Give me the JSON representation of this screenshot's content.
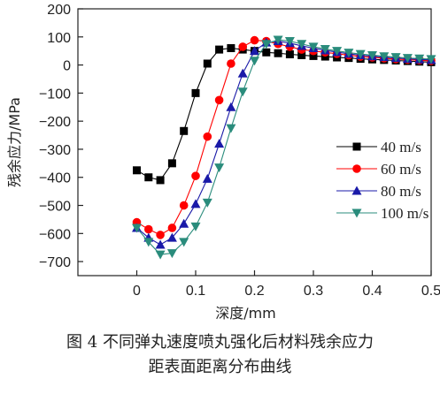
{
  "caption": {
    "line1": "图 4   不同弹丸速度喷丸强化后材料残余应力",
    "line2": "距表面距离分布曲线"
  },
  "chart_data": {
    "type": "line",
    "xlabel": "深度/mm",
    "ylabel": "残余应力/MPa",
    "xlim": [
      -0.1,
      0.5
    ],
    "ylim": [
      -750,
      200
    ],
    "xticks": [
      0,
      0.1,
      0.2,
      0.3,
      0.4,
      0.5
    ],
    "xtick_labels": [
      "0",
      "0.1",
      "0.2",
      "0.3",
      "0.4",
      "0.5"
    ],
    "yticks": [
      200,
      100,
      0,
      -100,
      -200,
      -300,
      -400,
      -500,
      -600,
      -700
    ],
    "ytick_labels": [
      "200",
      "100",
      "0",
      "−100",
      "−200",
      "−300",
      "−400",
      "−500",
      "−600",
      "−700"
    ],
    "legend_position": "right",
    "series": [
      {
        "name": "40 m/s",
        "color": "#000000",
        "marker": "square",
        "x": [
          0,
          0.02,
          0.04,
          0.06,
          0.08,
          0.1,
          0.12,
          0.14,
          0.16,
          0.18,
          0.2,
          0.22,
          0.24,
          0.26,
          0.28,
          0.3,
          0.32,
          0.34,
          0.36,
          0.38,
          0.4,
          0.42,
          0.44,
          0.46,
          0.48,
          0.5
        ],
        "values": [
          -375,
          -400,
          -410,
          -350,
          -235,
          -100,
          5,
          55,
          60,
          55,
          50,
          45,
          42,
          38,
          35,
          32,
          30,
          27,
          25,
          22,
          20,
          18,
          16,
          14,
          12,
          10
        ]
      },
      {
        "name": "60 m/s",
        "color": "#ff0000",
        "marker": "circle",
        "x": [
          0,
          0.02,
          0.04,
          0.06,
          0.08,
          0.1,
          0.12,
          0.14,
          0.16,
          0.18,
          0.2,
          0.22,
          0.24,
          0.26,
          0.28,
          0.3,
          0.32,
          0.34,
          0.36,
          0.38,
          0.4,
          0.42,
          0.44,
          0.46,
          0.48,
          0.5
        ],
        "values": [
          -560,
          -585,
          -605,
          -580,
          -500,
          -395,
          -255,
          -125,
          5,
          65,
          88,
          85,
          75,
          65,
          55,
          50,
          45,
          40,
          35,
          30,
          27,
          24,
          21,
          19,
          17,
          15
        ]
      },
      {
        "name": "80 m/s",
        "color": "#1a1aa8",
        "marker": "triangle-up",
        "x": [
          0,
          0.02,
          0.04,
          0.06,
          0.08,
          0.1,
          0.12,
          0.14,
          0.16,
          0.18,
          0.2,
          0.22,
          0.24,
          0.26,
          0.28,
          0.3,
          0.32,
          0.34,
          0.36,
          0.38,
          0.4,
          0.42,
          0.44,
          0.46,
          0.48,
          0.5
        ],
        "values": [
          -580,
          -615,
          -640,
          -615,
          -565,
          -495,
          -405,
          -280,
          -150,
          -30,
          50,
          80,
          85,
          78,
          68,
          60,
          52,
          46,
          40,
          35,
          31,
          28,
          25,
          22,
          20,
          18
        ]
      },
      {
        "name": "100 m/s",
        "color": "#2a8c7c",
        "marker": "triangle-down",
        "x": [
          0,
          0.02,
          0.04,
          0.06,
          0.08,
          0.1,
          0.12,
          0.14,
          0.16,
          0.18,
          0.2,
          0.22,
          0.24,
          0.26,
          0.28,
          0.3,
          0.32,
          0.34,
          0.36,
          0.38,
          0.4,
          0.42,
          0.44,
          0.46,
          0.48,
          0.5
        ],
        "values": [
          -580,
          -630,
          -675,
          -670,
          -630,
          -575,
          -490,
          -365,
          -225,
          -95,
          15,
          75,
          90,
          85,
          75,
          65,
          57,
          50,
          44,
          39,
          35,
          31,
          28,
          25,
          23,
          21
        ]
      }
    ]
  }
}
